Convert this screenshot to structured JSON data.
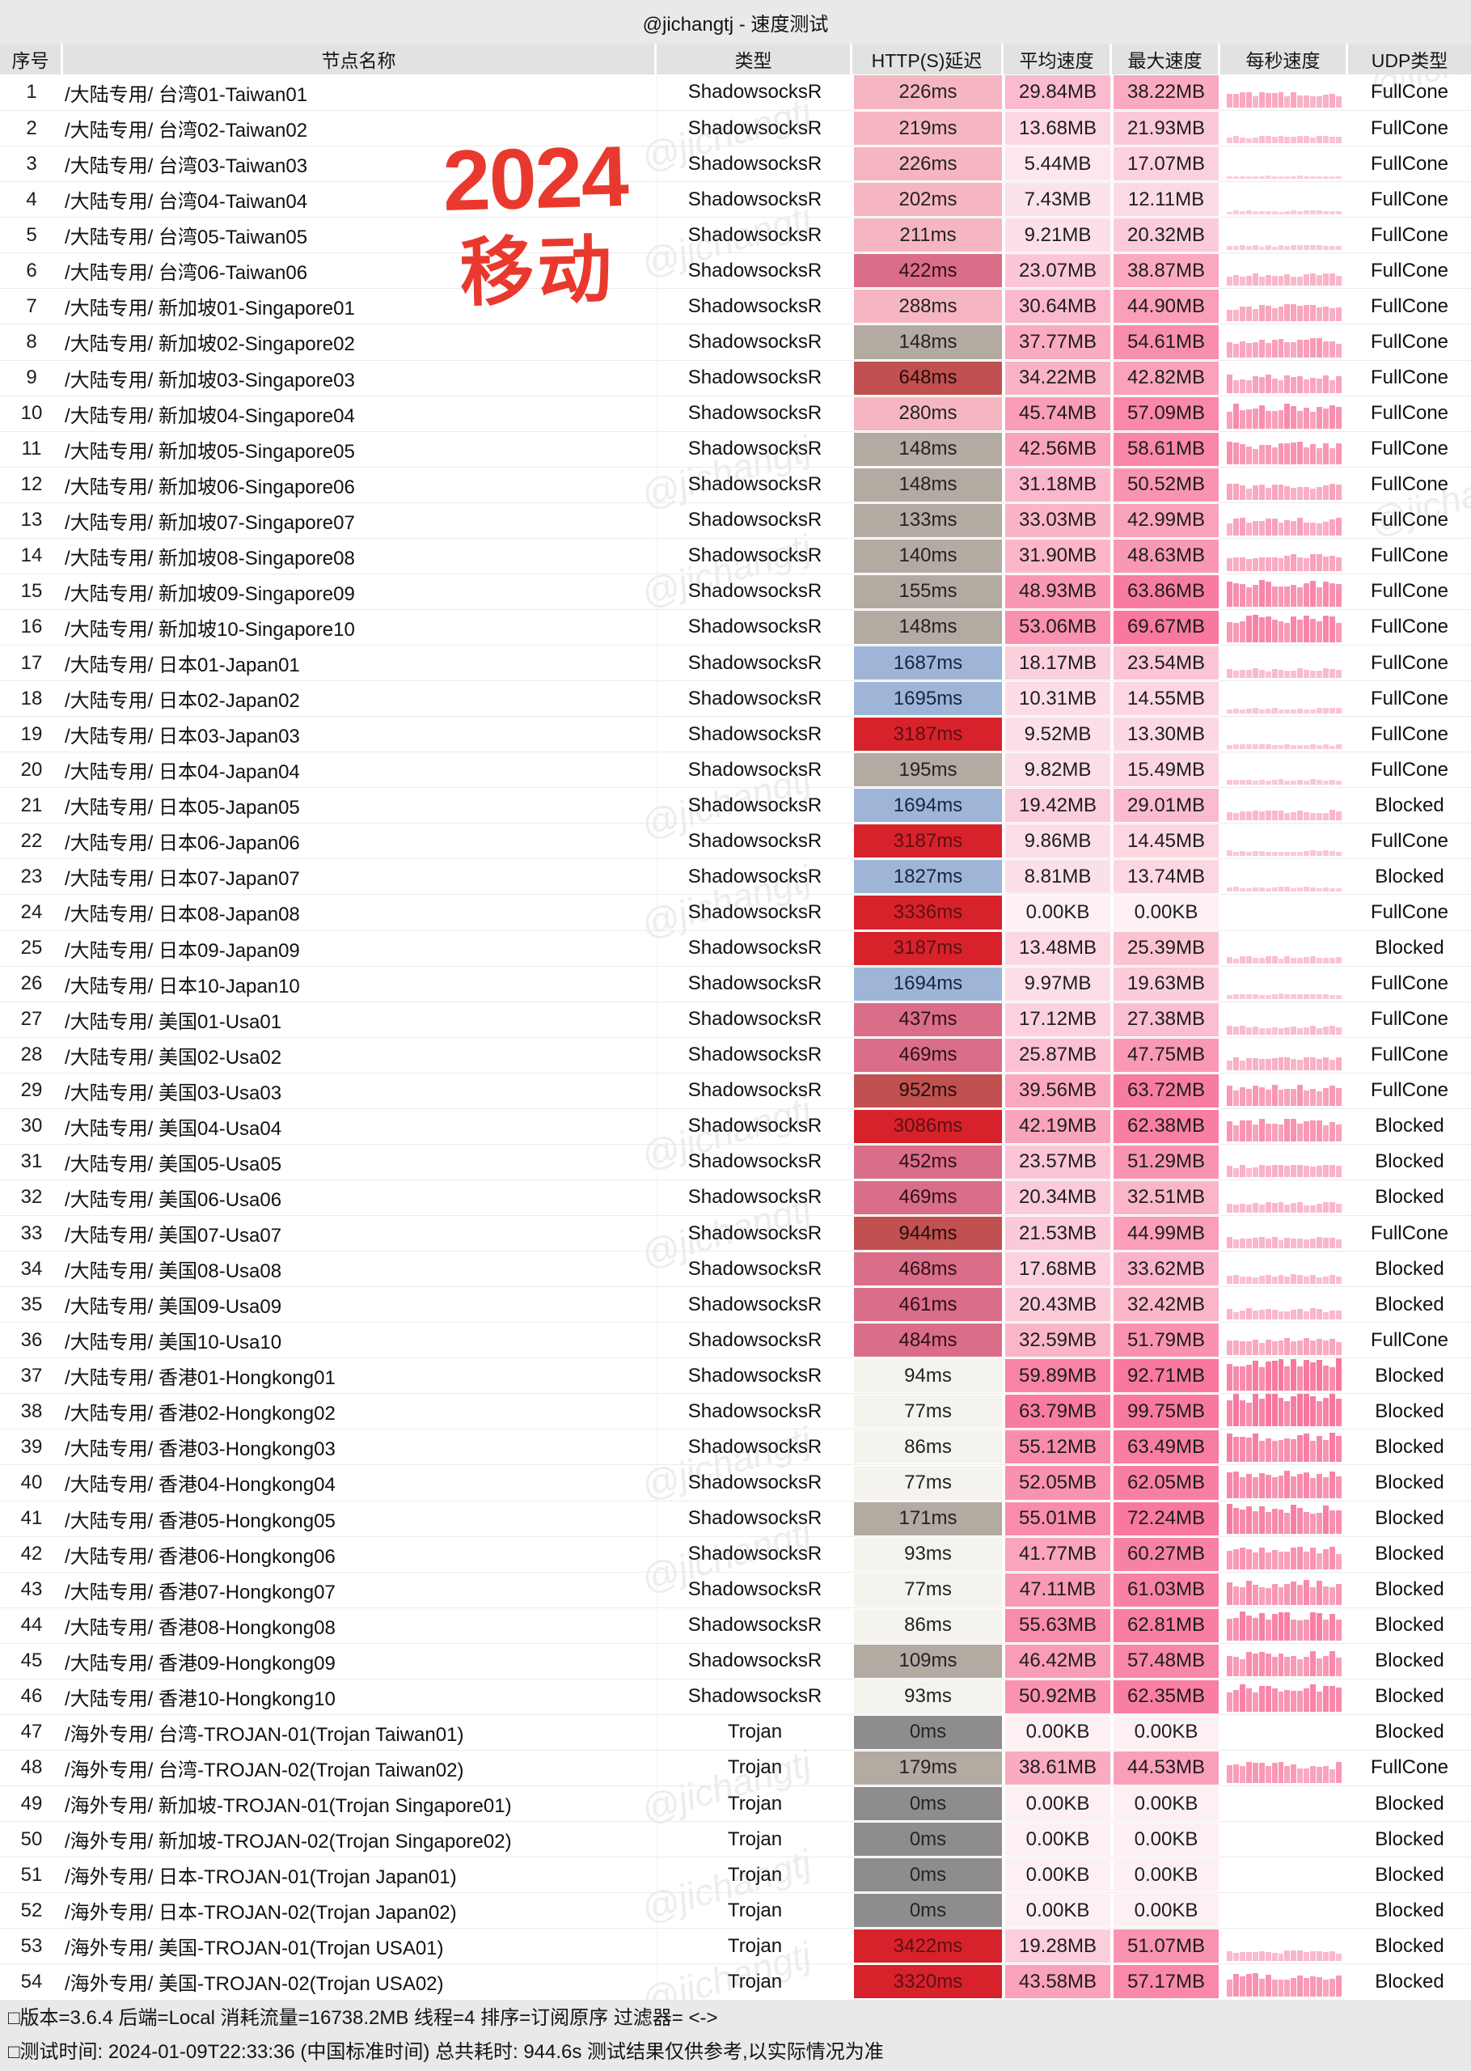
{
  "title": "@jichangtj - 速度测试",
  "watermark": "@jichangtj",
  "stamp": {
    "line1": "2024",
    "line2": "移动",
    "color": "#e9392e"
  },
  "columns": [
    "序号",
    "节点名称",
    "类型",
    "HTTP(S)延迟",
    "平均速度",
    "最大速度",
    "每秒速度",
    "UDP类型"
  ],
  "footer": {
    "line1": "□版本=3.6.4  后端=Local  消耗流量=16738.2MB   线程=4  排序=订阅原序  过滤器= <->",
    "line2": "□测试时间: 2024-01-09T22:33:36 (中国标准时间) 总共耗时: 944.6s 测试结果仅供参考,以实际情况为准"
  },
  "latency_palette": {
    "white": {
      "bg": "#f5f3ee",
      "tx": "#232323"
    },
    "gray": {
      "bg": "#b3aaa2",
      "tx": "#232323"
    },
    "darkgray": {
      "bg": "#8e8c8f",
      "tx": "#262626"
    },
    "pink": {
      "bg": "#f6b6c1",
      "tx": "#232323"
    },
    "rose": {
      "bg": "#da6d88",
      "tx": "#2e0f1a"
    },
    "brick": {
      "bg": "#c05150",
      "tx": "#260b0b"
    },
    "blue": {
      "bg": "#9eb5d8",
      "tx": "#18263f"
    },
    "red": {
      "bg": "#d7222b",
      "tx": "#5c1013"
    }
  },
  "speed_scale": {
    "low_color": "#fdf0f3",
    "high_color": "#f8789e",
    "saturate_at_mb": 66
  },
  "rows": [
    {
      "no": 1,
      "name": "/大陆专用/ 台湾01-Taiwan01",
      "type": "ShadowsocksR",
      "lat": "226ms",
      "lat_color": "pink",
      "avg": "29.84MB",
      "avg_v": 29.84,
      "max": "38.22MB",
      "max_v": 38.22,
      "udp": "FullCone"
    },
    {
      "no": 2,
      "name": "/大陆专用/ 台湾02-Taiwan02",
      "type": "ShadowsocksR",
      "lat": "219ms",
      "lat_color": "pink",
      "avg": "13.68MB",
      "avg_v": 13.68,
      "max": "21.93MB",
      "max_v": 21.93,
      "udp": "FullCone"
    },
    {
      "no": 3,
      "name": "/大陆专用/ 台湾03-Taiwan03",
      "type": "ShadowsocksR",
      "lat": "226ms",
      "lat_color": "pink",
      "avg": "5.44MB",
      "avg_v": 5.44,
      "max": "17.07MB",
      "max_v": 17.07,
      "udp": "FullCone"
    },
    {
      "no": 4,
      "name": "/大陆专用/ 台湾04-Taiwan04",
      "type": "ShadowsocksR",
      "lat": "202ms",
      "lat_color": "pink",
      "avg": "7.43MB",
      "avg_v": 7.43,
      "max": "12.11MB",
      "max_v": 12.11,
      "udp": "FullCone"
    },
    {
      "no": 5,
      "name": "/大陆专用/ 台湾05-Taiwan05",
      "type": "ShadowsocksR",
      "lat": "211ms",
      "lat_color": "pink",
      "avg": "9.21MB",
      "avg_v": 9.21,
      "max": "20.32MB",
      "max_v": 20.32,
      "udp": "FullCone"
    },
    {
      "no": 6,
      "name": "/大陆专用/ 台湾06-Taiwan06",
      "type": "ShadowsocksR",
      "lat": "422ms",
      "lat_color": "rose",
      "avg": "23.07MB",
      "avg_v": 23.07,
      "max": "38.87MB",
      "max_v": 38.87,
      "udp": "FullCone"
    },
    {
      "no": 7,
      "name": "/大陆专用/ 新加坡01-Singapore01",
      "type": "ShadowsocksR",
      "lat": "288ms",
      "lat_color": "pink",
      "avg": "30.64MB",
      "avg_v": 30.64,
      "max": "44.90MB",
      "max_v": 44.9,
      "udp": "FullCone"
    },
    {
      "no": 8,
      "name": "/大陆专用/ 新加坡02-Singapore02",
      "type": "ShadowsocksR",
      "lat": "148ms",
      "lat_color": "gray",
      "avg": "37.77MB",
      "avg_v": 37.77,
      "max": "54.61MB",
      "max_v": 54.61,
      "udp": "FullCone"
    },
    {
      "no": 9,
      "name": "/大陆专用/ 新加坡03-Singapore03",
      "type": "ShadowsocksR",
      "lat": "648ms",
      "lat_color": "brick",
      "avg": "34.22MB",
      "avg_v": 34.22,
      "max": "42.82MB",
      "max_v": 42.82,
      "udp": "FullCone"
    },
    {
      "no": 10,
      "name": "/大陆专用/ 新加坡04-Singapore04",
      "type": "ShadowsocksR",
      "lat": "280ms",
      "lat_color": "pink",
      "avg": "45.74MB",
      "avg_v": 45.74,
      "max": "57.09MB",
      "max_v": 57.09,
      "udp": "FullCone"
    },
    {
      "no": 11,
      "name": "/大陆专用/ 新加坡05-Singapore05",
      "type": "ShadowsocksR",
      "lat": "148ms",
      "lat_color": "gray",
      "avg": "42.56MB",
      "avg_v": 42.56,
      "max": "58.61MB",
      "max_v": 58.61,
      "udp": "FullCone"
    },
    {
      "no": 12,
      "name": "/大陆专用/ 新加坡06-Singapore06",
      "type": "ShadowsocksR",
      "lat": "148ms",
      "lat_color": "gray",
      "avg": "31.18MB",
      "avg_v": 31.18,
      "max": "50.52MB",
      "max_v": 50.52,
      "udp": "FullCone"
    },
    {
      "no": 13,
      "name": "/大陆专用/ 新加坡07-Singapore07",
      "type": "ShadowsocksR",
      "lat": "133ms",
      "lat_color": "gray",
      "avg": "33.03MB",
      "avg_v": 33.03,
      "max": "42.99MB",
      "max_v": 42.99,
      "udp": "FullCone"
    },
    {
      "no": 14,
      "name": "/大陆专用/ 新加坡08-Singapore08",
      "type": "ShadowsocksR",
      "lat": "140ms",
      "lat_color": "gray",
      "avg": "31.90MB",
      "avg_v": 31.9,
      "max": "48.63MB",
      "max_v": 48.63,
      "udp": "FullCone"
    },
    {
      "no": 15,
      "name": "/大陆专用/ 新加坡09-Singapore09",
      "type": "ShadowsocksR",
      "lat": "155ms",
      "lat_color": "gray",
      "avg": "48.93MB",
      "avg_v": 48.93,
      "max": "63.86MB",
      "max_v": 63.86,
      "udp": "FullCone"
    },
    {
      "no": 16,
      "name": "/大陆专用/ 新加坡10-Singapore10",
      "type": "ShadowsocksR",
      "lat": "148ms",
      "lat_color": "gray",
      "avg": "53.06MB",
      "avg_v": 53.06,
      "max": "69.67MB",
      "max_v": 69.67,
      "udp": "FullCone"
    },
    {
      "no": 17,
      "name": "/大陆专用/ 日本01-Japan01",
      "type": "ShadowsocksR",
      "lat": "1687ms",
      "lat_color": "blue",
      "avg": "18.17MB",
      "avg_v": 18.17,
      "max": "23.54MB",
      "max_v": 23.54,
      "udp": "FullCone"
    },
    {
      "no": 18,
      "name": "/大陆专用/ 日本02-Japan02",
      "type": "ShadowsocksR",
      "lat": "1695ms",
      "lat_color": "blue",
      "avg": "10.31MB",
      "avg_v": 10.31,
      "max": "14.55MB",
      "max_v": 14.55,
      "udp": "FullCone"
    },
    {
      "no": 19,
      "name": "/大陆专用/ 日本03-Japan03",
      "type": "ShadowsocksR",
      "lat": "3187ms",
      "lat_color": "red",
      "avg": "9.52MB",
      "avg_v": 9.52,
      "max": "13.30MB",
      "max_v": 13.3,
      "udp": "FullCone"
    },
    {
      "no": 20,
      "name": "/大陆专用/ 日本04-Japan04",
      "type": "ShadowsocksR",
      "lat": "195ms",
      "lat_color": "gray",
      "avg": "9.82MB",
      "avg_v": 9.82,
      "max": "15.49MB",
      "max_v": 15.49,
      "udp": "FullCone"
    },
    {
      "no": 21,
      "name": "/大陆专用/ 日本05-Japan05",
      "type": "ShadowsocksR",
      "lat": "1694ms",
      "lat_color": "blue",
      "avg": "19.42MB",
      "avg_v": 19.42,
      "max": "29.01MB",
      "max_v": 29.01,
      "udp": "Blocked"
    },
    {
      "no": 22,
      "name": "/大陆专用/ 日本06-Japan06",
      "type": "ShadowsocksR",
      "lat": "3187ms",
      "lat_color": "red",
      "avg": "9.86MB",
      "avg_v": 9.86,
      "max": "14.45MB",
      "max_v": 14.45,
      "udp": "FullCone"
    },
    {
      "no": 23,
      "name": "/大陆专用/ 日本07-Japan07",
      "type": "ShadowsocksR",
      "lat": "1827ms",
      "lat_color": "blue",
      "avg": "8.81MB",
      "avg_v": 8.81,
      "max": "13.74MB",
      "max_v": 13.74,
      "udp": "Blocked"
    },
    {
      "no": 24,
      "name": "/大陆专用/ 日本08-Japan08",
      "type": "ShadowsocksR",
      "lat": "3336ms",
      "lat_color": "red",
      "avg": "0.00KB",
      "avg_v": 0,
      "max": "0.00KB",
      "max_v": 0,
      "udp": "FullCone"
    },
    {
      "no": 25,
      "name": "/大陆专用/ 日本09-Japan09",
      "type": "ShadowsocksR",
      "lat": "3187ms",
      "lat_color": "red",
      "avg": "13.48MB",
      "avg_v": 13.48,
      "max": "25.39MB",
      "max_v": 25.39,
      "udp": "Blocked"
    },
    {
      "no": 26,
      "name": "/大陆专用/ 日本10-Japan10",
      "type": "ShadowsocksR",
      "lat": "1694ms",
      "lat_color": "blue",
      "avg": "9.97MB",
      "avg_v": 9.97,
      "max": "19.63MB",
      "max_v": 19.63,
      "udp": "FullCone"
    },
    {
      "no": 27,
      "name": "/大陆专用/ 美国01-Usa01",
      "type": "ShadowsocksR",
      "lat": "437ms",
      "lat_color": "rose",
      "avg": "17.12MB",
      "avg_v": 17.12,
      "max": "27.38MB",
      "max_v": 27.38,
      "udp": "FullCone"
    },
    {
      "no": 28,
      "name": "/大陆专用/ 美国02-Usa02",
      "type": "ShadowsocksR",
      "lat": "469ms",
      "lat_color": "rose",
      "avg": "25.87MB",
      "avg_v": 25.87,
      "max": "47.75MB",
      "max_v": 47.75,
      "udp": "FullCone"
    },
    {
      "no": 29,
      "name": "/大陆专用/ 美国03-Usa03",
      "type": "ShadowsocksR",
      "lat": "952ms",
      "lat_color": "brick",
      "avg": "39.56MB",
      "avg_v": 39.56,
      "max": "63.72MB",
      "max_v": 63.72,
      "udp": "FullCone"
    },
    {
      "no": 30,
      "name": "/大陆专用/ 美国04-Usa04",
      "type": "ShadowsocksR",
      "lat": "3086ms",
      "lat_color": "red",
      "avg": "42.19MB",
      "avg_v": 42.19,
      "max": "62.38MB",
      "max_v": 62.38,
      "udp": "Blocked"
    },
    {
      "no": 31,
      "name": "/大陆专用/ 美国05-Usa05",
      "type": "ShadowsocksR",
      "lat": "452ms",
      "lat_color": "rose",
      "avg": "23.57MB",
      "avg_v": 23.57,
      "max": "51.29MB",
      "max_v": 51.29,
      "udp": "Blocked"
    },
    {
      "no": 32,
      "name": "/大陆专用/ 美国06-Usa06",
      "type": "ShadowsocksR",
      "lat": "469ms",
      "lat_color": "rose",
      "avg": "20.34MB",
      "avg_v": 20.34,
      "max": "32.51MB",
      "max_v": 32.51,
      "udp": "Blocked"
    },
    {
      "no": 33,
      "name": "/大陆专用/ 美国07-Usa07",
      "type": "ShadowsocksR",
      "lat": "944ms",
      "lat_color": "brick",
      "avg": "21.53MB",
      "avg_v": 21.53,
      "max": "44.99MB",
      "max_v": 44.99,
      "udp": "FullCone"
    },
    {
      "no": 34,
      "name": "/大陆专用/ 美国08-Usa08",
      "type": "ShadowsocksR",
      "lat": "468ms",
      "lat_color": "rose",
      "avg": "17.68MB",
      "avg_v": 17.68,
      "max": "33.62MB",
      "max_v": 33.62,
      "udp": "Blocked"
    },
    {
      "no": 35,
      "name": "/大陆专用/ 美国09-Usa09",
      "type": "ShadowsocksR",
      "lat": "461ms",
      "lat_color": "rose",
      "avg": "20.43MB",
      "avg_v": 20.43,
      "max": "32.42MB",
      "max_v": 32.42,
      "udp": "Blocked"
    },
    {
      "no": 36,
      "name": "/大陆专用/ 美国10-Usa10",
      "type": "ShadowsocksR",
      "lat": "484ms",
      "lat_color": "rose",
      "avg": "32.59MB",
      "avg_v": 32.59,
      "max": "51.79MB",
      "max_v": 51.79,
      "udp": "FullCone"
    },
    {
      "no": 37,
      "name": "/大陆专用/ 香港01-Hongkong01",
      "type": "ShadowsocksR",
      "lat": "94ms",
      "lat_color": "white",
      "avg": "59.89MB",
      "avg_v": 59.89,
      "max": "92.71MB",
      "max_v": 92.71,
      "udp": "Blocked"
    },
    {
      "no": 38,
      "name": "/大陆专用/ 香港02-Hongkong02",
      "type": "ShadowsocksR",
      "lat": "77ms",
      "lat_color": "white",
      "avg": "63.79MB",
      "avg_v": 63.79,
      "max": "99.75MB",
      "max_v": 99.75,
      "udp": "Blocked"
    },
    {
      "no": 39,
      "name": "/大陆专用/ 香港03-Hongkong03",
      "type": "ShadowsocksR",
      "lat": "86ms",
      "lat_color": "white",
      "avg": "55.12MB",
      "avg_v": 55.12,
      "max": "63.49MB",
      "max_v": 63.49,
      "udp": "Blocked"
    },
    {
      "no": 40,
      "name": "/大陆专用/ 香港04-Hongkong04",
      "type": "ShadowsocksR",
      "lat": "77ms",
      "lat_color": "white",
      "avg": "52.05MB",
      "avg_v": 52.05,
      "max": "62.05MB",
      "max_v": 62.05,
      "udp": "Blocked"
    },
    {
      "no": 41,
      "name": "/大陆专用/ 香港05-Hongkong05",
      "type": "ShadowsocksR",
      "lat": "171ms",
      "lat_color": "gray",
      "avg": "55.01MB",
      "avg_v": 55.01,
      "max": "72.24MB",
      "max_v": 72.24,
      "udp": "Blocked"
    },
    {
      "no": 42,
      "name": "/大陆专用/ 香港06-Hongkong06",
      "type": "ShadowsocksR",
      "lat": "93ms",
      "lat_color": "white",
      "avg": "41.77MB",
      "avg_v": 41.77,
      "max": "60.27MB",
      "max_v": 60.27,
      "udp": "Blocked"
    },
    {
      "no": 43,
      "name": "/大陆专用/ 香港07-Hongkong07",
      "type": "ShadowsocksR",
      "lat": "77ms",
      "lat_color": "white",
      "avg": "47.11MB",
      "avg_v": 47.11,
      "max": "61.03MB",
      "max_v": 61.03,
      "udp": "Blocked"
    },
    {
      "no": 44,
      "name": "/大陆专用/ 香港08-Hongkong08",
      "type": "ShadowsocksR",
      "lat": "86ms",
      "lat_color": "white",
      "avg": "55.63MB",
      "avg_v": 55.63,
      "max": "62.81MB",
      "max_v": 62.81,
      "udp": "Blocked"
    },
    {
      "no": 45,
      "name": "/大陆专用/ 香港09-Hongkong09",
      "type": "ShadowsocksR",
      "lat": "109ms",
      "lat_color": "gray",
      "avg": "46.42MB",
      "avg_v": 46.42,
      "max": "57.48MB",
      "max_v": 57.48,
      "udp": "Blocked"
    },
    {
      "no": 46,
      "name": "/大陆专用/ 香港10-Hongkong10",
      "type": "ShadowsocksR",
      "lat": "93ms",
      "lat_color": "white",
      "avg": "50.92MB",
      "avg_v": 50.92,
      "max": "62.35MB",
      "max_v": 62.35,
      "udp": "Blocked"
    },
    {
      "no": 47,
      "name": "/海外专用/ 台湾-TROJAN-01(Trojan Taiwan01)",
      "type": "Trojan",
      "lat": "0ms",
      "lat_color": "darkgray",
      "avg": "0.00KB",
      "avg_v": 0,
      "max": "0.00KB",
      "max_v": 0,
      "udp": "Blocked"
    },
    {
      "no": 48,
      "name": "/海外专用/ 台湾-TROJAN-02(Trojan Taiwan02)",
      "type": "Trojan",
      "lat": "179ms",
      "lat_color": "gray",
      "avg": "38.61MB",
      "avg_v": 38.61,
      "max": "44.53MB",
      "max_v": 44.53,
      "udp": "FullCone"
    },
    {
      "no": 49,
      "name": "/海外专用/ 新加坡-TROJAN-01(Trojan Singapore01)",
      "type": "Trojan",
      "lat": "0ms",
      "lat_color": "darkgray",
      "avg": "0.00KB",
      "avg_v": 0,
      "max": "0.00KB",
      "max_v": 0,
      "udp": "Blocked"
    },
    {
      "no": 50,
      "name": "/海外专用/ 新加坡-TROJAN-02(Trojan Singapore02)",
      "type": "Trojan",
      "lat": "0ms",
      "lat_color": "darkgray",
      "avg": "0.00KB",
      "avg_v": 0,
      "max": "0.00KB",
      "max_v": 0,
      "udp": "Blocked"
    },
    {
      "no": 51,
      "name": "/海外专用/ 日本-TROJAN-01(Trojan Japan01)",
      "type": "Trojan",
      "lat": "0ms",
      "lat_color": "darkgray",
      "avg": "0.00KB",
      "avg_v": 0,
      "max": "0.00KB",
      "max_v": 0,
      "udp": "Blocked"
    },
    {
      "no": 52,
      "name": "/海外专用/ 日本-TROJAN-02(Trojan Japan02)",
      "type": "Trojan",
      "lat": "0ms",
      "lat_color": "darkgray",
      "avg": "0.00KB",
      "avg_v": 0,
      "max": "0.00KB",
      "max_v": 0,
      "udp": "Blocked"
    },
    {
      "no": 53,
      "name": "/海外专用/ 美国-TROJAN-01(Trojan USA01)",
      "type": "Trojan",
      "lat": "3422ms",
      "lat_color": "red",
      "avg": "19.28MB",
      "avg_v": 19.28,
      "max": "51.07MB",
      "max_v": 51.07,
      "udp": "Blocked"
    },
    {
      "no": 54,
      "name": "/海外专用/ 美国-TROJAN-02(Trojan USA02)",
      "type": "Trojan",
      "lat": "3320ms",
      "lat_color": "red",
      "avg": "43.58MB",
      "avg_v": 43.58,
      "max": "57.17MB",
      "max_v": 57.17,
      "udp": "Blocked"
    }
  ]
}
